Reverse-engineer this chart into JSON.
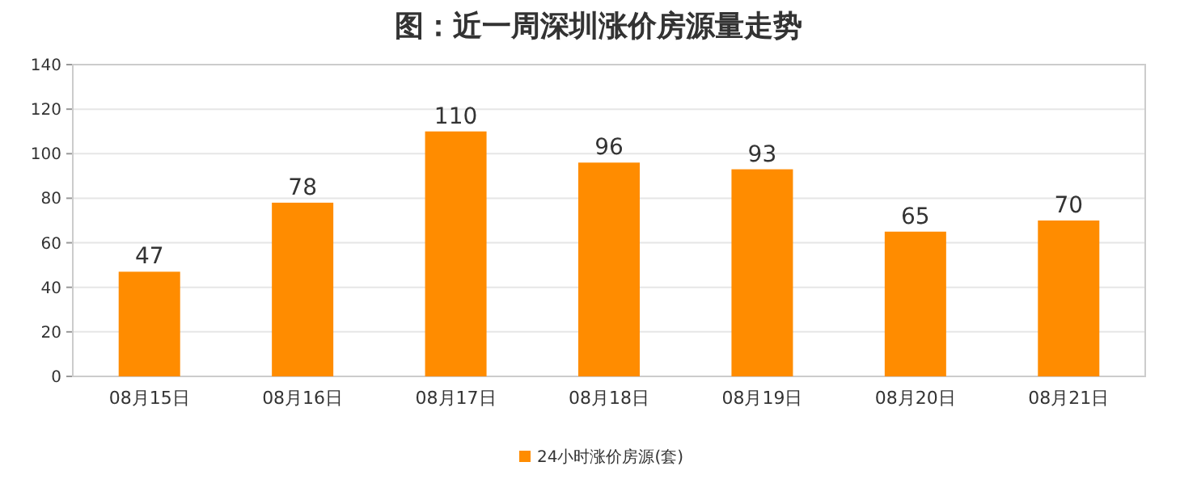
{
  "chart_data": {
    "type": "bar",
    "title": "图：近一周深圳涨价房源量走势",
    "categories": [
      "08月15日",
      "08月16日",
      "08月17日",
      "08月18日",
      "08月19日",
      "08月20日",
      "08月21日"
    ],
    "series": [
      {
        "name": "24小时涨价房源(套)",
        "color": "#ff8c00",
        "values": [
          47,
          78,
          110,
          96,
          93,
          65,
          70
        ]
      }
    ],
    "ylim": [
      0,
      140
    ],
    "yticks": [
      0,
      20,
      40,
      60,
      80,
      100,
      120,
      140
    ],
    "grid": "y",
    "legend": "bottom",
    "data_labels": true
  }
}
